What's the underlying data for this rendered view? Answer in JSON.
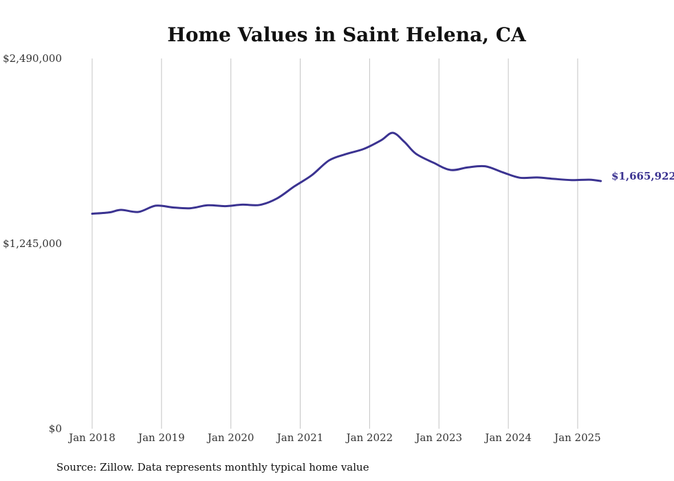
{
  "chart_data": {
    "type": "line",
    "title": "Home Values in Saint Helena, CA",
    "source_note": "Source: Zillow. Data represents monthly typical home value",
    "xlabel": "",
    "ylabel": "",
    "ylim": [
      0,
      2490000
    ],
    "yticks": [
      {
        "value": 0,
        "label": "$0"
      },
      {
        "value": 1245000,
        "label": "$1,245,000"
      },
      {
        "value": 2490000,
        "label": "$2,490,000"
      }
    ],
    "xticks": [
      "Jan 2018",
      "Jan 2019",
      "Jan 2020",
      "Jan 2021",
      "Jan 2022",
      "Jan 2023",
      "Jan 2024",
      "Jan 2025"
    ],
    "x_start": "2018-01",
    "x_end": "2025-05",
    "grid": "vertical",
    "line_color": "#3b3391",
    "end_label": "$1,665,922",
    "series": [
      {
        "x": [
          "2018-01",
          "2018-04",
          "2018-06",
          "2018-09",
          "2018-12",
          "2019-03",
          "2019-06",
          "2019-09",
          "2019-12",
          "2020-03",
          "2020-06",
          "2020-09",
          "2020-12",
          "2021-03",
          "2021-06",
          "2021-09",
          "2021-12",
          "2022-03",
          "2022-05",
          "2022-07",
          "2022-09",
          "2022-12",
          "2023-03",
          "2023-06",
          "2023-09",
          "2023-12",
          "2024-03",
          "2024-06",
          "2024-09",
          "2024-12",
          "2025-03",
          "2025-05"
        ],
        "values": [
          1446000,
          1455000,
          1472000,
          1458000,
          1500000,
          1488000,
          1483000,
          1503000,
          1497000,
          1507000,
          1505000,
          1549000,
          1630000,
          1705000,
          1805000,
          1848000,
          1882000,
          1940000,
          1990000,
          1930000,
          1850000,
          1790000,
          1740000,
          1758000,
          1765000,
          1725000,
          1688000,
          1690000,
          1680000,
          1672000,
          1675000,
          1665922
        ]
      }
    ]
  }
}
